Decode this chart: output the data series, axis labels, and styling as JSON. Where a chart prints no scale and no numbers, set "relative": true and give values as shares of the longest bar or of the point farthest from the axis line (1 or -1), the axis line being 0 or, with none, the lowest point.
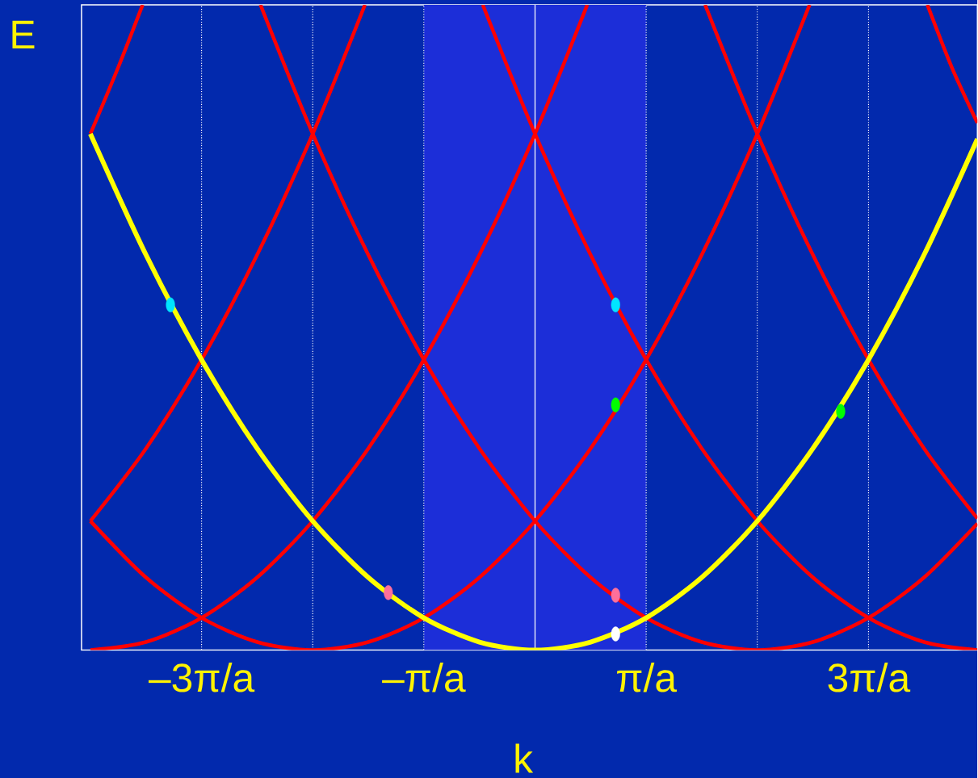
{
  "chart_data": {
    "type": "line",
    "relative": true,
    "xlabel": "k",
    "ylabel": "E",
    "xlim": [
      -4.08,
      3.98
    ],
    "xticks": [
      {
        "value": -3,
        "label": "–3π/a"
      },
      {
        "value": -2,
        "label": null
      },
      {
        "value": -1,
        "label": "–π/a"
      },
      {
        "value": 1,
        "label": "π/a"
      },
      {
        "value": 2,
        "label": null
      },
      {
        "value": 3,
        "label": "3π/a"
      }
    ],
    "grid": "x",
    "ref_lines": [
      {
        "axis": "x",
        "value": 0,
        "color": "#ffffff"
      }
    ],
    "bands": [
      {
        "axis": "x",
        "from": -1,
        "to": 1,
        "color": "#1c2ed8"
      }
    ],
    "series": [
      {
        "color": "#ff0000",
        "x": [
          -4,
          -3.75,
          -3.53
        ],
        "values": [
          0.8,
          0.903,
          1
        ]
      },
      {
        "color": "#ff0000",
        "x": [
          -4,
          -3.5,
          -3,
          -2.5,
          -2,
          -1.53
        ],
        "values": [
          0.2,
          0.3125,
          0.45,
          0.6125,
          0.8,
          1
        ]
      },
      {
        "color": "#ff0000",
        "x": [
          -4,
          -3.5,
          -3,
          -2.5,
          -2,
          -1.5,
          -1,
          -0.5,
          0,
          0.47
        ],
        "values": [
          0,
          0.0125,
          0.05,
          0.1125,
          0.2,
          0.3125,
          0.45,
          0.6125,
          0.8,
          1
        ]
      },
      {
        "color": "#ff0000",
        "x": [
          -4,
          -3.5,
          -3,
          -2.5,
          -2,
          -1.5,
          -1,
          -0.5,
          0,
          0.5,
          1,
          1.5,
          2,
          2.47
        ],
        "values": [
          0.2,
          0.1125,
          0.05,
          0.0125,
          0,
          0.0125,
          0.05,
          0.1125,
          0.2,
          0.3125,
          0.45,
          0.6125,
          0.8,
          1
        ]
      },
      {
        "color": "#ff0000",
        "x": [
          -2.47,
          -2,
          -1.5,
          -1,
          -0.5,
          0,
          0.5,
          1,
          1.5,
          2,
          2.5,
          3,
          3.5,
          3.98
        ],
        "values": [
          1,
          0.8,
          0.6125,
          0.45,
          0.3125,
          0.2,
          0.1125,
          0.05,
          0.0125,
          0,
          0.0125,
          0.05,
          0.1125,
          0.196
        ]
      },
      {
        "color": "#ff0000",
        "x": [
          -0.47,
          0,
          0.5,
          1,
          1.5,
          2,
          2.5,
          3,
          3.5,
          3.98
        ],
        "values": [
          1,
          0.8,
          0.6125,
          0.45,
          0.3125,
          0.2,
          0.1125,
          0.05,
          0.0125,
          0
        ]
      },
      {
        "color": "#ff0000",
        "x": [
          1.53,
          2,
          2.5,
          3,
          3.5,
          3.98
        ],
        "values": [
          1,
          0.8,
          0.6125,
          0.45,
          0.3125,
          0.204
        ]
      },
      {
        "color": "#ff0000",
        "x": [
          3.53,
          3.75,
          3.98
        ],
        "values": [
          1,
          0.903,
          0.817
        ]
      },
      {
        "color": "#ffff00",
        "x": [
          -4,
          -3.5,
          -3,
          -2.5,
          -2,
          -1.5,
          -1,
          -0.5,
          0,
          0.5,
          1,
          1.5,
          2,
          2.5,
          3,
          3.5,
          3.98
        ],
        "values": [
          0.8,
          0.6125,
          0.45,
          0.3125,
          0.2,
          0.1125,
          0.05,
          0.0125,
          0,
          0.0125,
          0.05,
          0.1125,
          0.2,
          0.3125,
          0.45,
          0.6125,
          0.792
        ]
      },
      {
        "type": "scatter",
        "marker": "circle",
        "x": [
          -3.28,
          0.725,
          0.725,
          2.75,
          -1.32,
          0.725,
          0.725
        ],
        "values": [
          0.535,
          0.535,
          0.38,
          0.37,
          0.089,
          0.085,
          0.025
        ],
        "colors": [
          "#00e5ff",
          "#00e5ff",
          "#00ff00",
          "#00ff00",
          "#ff6f9a",
          "#ff6f9a",
          "#ffffff"
        ]
      }
    ]
  }
}
